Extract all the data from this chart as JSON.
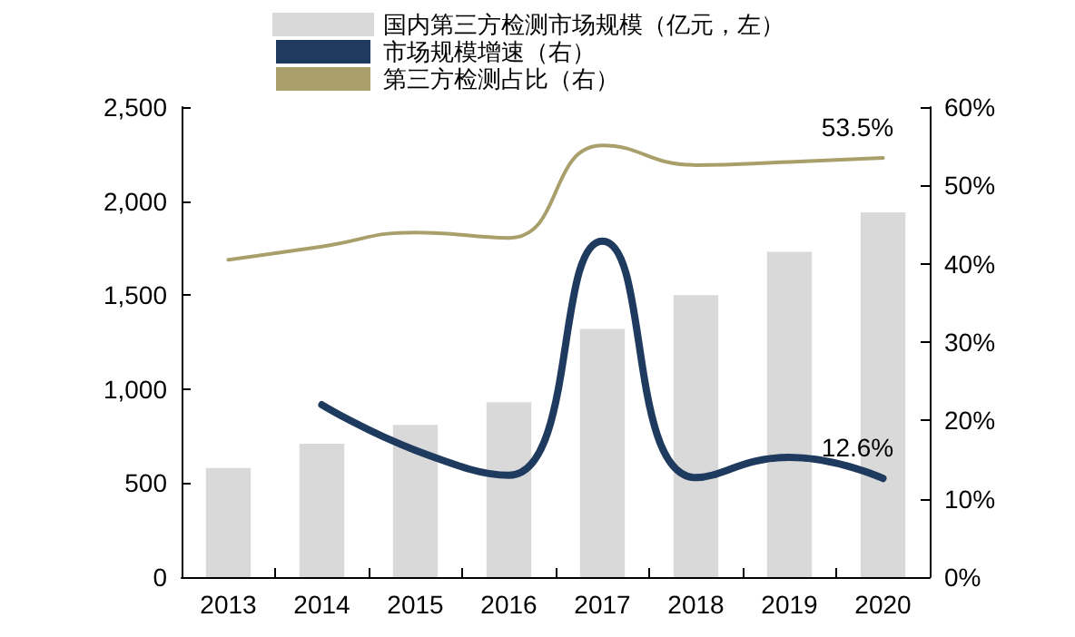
{
  "chart_data": {
    "type": "bar",
    "categories": [
      "2013",
      "2014",
      "2015",
      "2016",
      "2017",
      "2018",
      "2019",
      "2020"
    ],
    "series": [
      {
        "name": "国内第三方检测市场规模（亿元，左）",
        "color": "#d9d9d9",
        "values": [
          580,
          710,
          810,
          930,
          1320,
          1500,
          1730,
          1940
        ]
      },
      {
        "name": "市场规模增速（右）",
        "type": "line",
        "axis": "y2",
        "color": "#1f3a5f",
        "values": [
          null,
          22.0,
          16.2,
          13.0,
          42.9,
          12.7,
          15.3,
          12.6
        ],
        "value_labels": [
          null,
          null,
          null,
          null,
          null,
          null,
          null,
          "12.6%"
        ]
      },
      {
        "name": "第三方检测占比（右）",
        "type": "line",
        "axis": "y2",
        "color": "#a89f6a",
        "values": [
          40.5,
          42.2,
          44.0,
          43.3,
          55.1,
          52.6,
          53.0,
          53.5
        ],
        "value_labels": [
          null,
          null,
          null,
          null,
          null,
          null,
          null,
          "53.5%"
        ]
      }
    ],
    "ylim": [
      0,
      2500
    ],
    "yticks": [
      0,
      500,
      {
        "value": 1000,
        "label": "1,000"
      },
      {
        "value": 1500,
        "label": "1,500"
      },
      {
        "value": 2000,
        "label": "2,000"
      },
      {
        "value": 2500,
        "label": "2,500"
      }
    ],
    "y2lim": [
      0,
      60
    ],
    "y2ticks": [
      {
        "value": 0,
        "label": "0%"
      },
      {
        "value": 10,
        "label": "10%"
      },
      {
        "value": 20,
        "label": "20%"
      },
      {
        "value": 30,
        "label": "30%"
      },
      {
        "value": 40,
        "label": "40%"
      },
      {
        "value": 50,
        "label": "50%"
      },
      {
        "value": 60,
        "label": "60%"
      }
    ],
    "grid": false,
    "legend": "top",
    "marker": "none"
  }
}
